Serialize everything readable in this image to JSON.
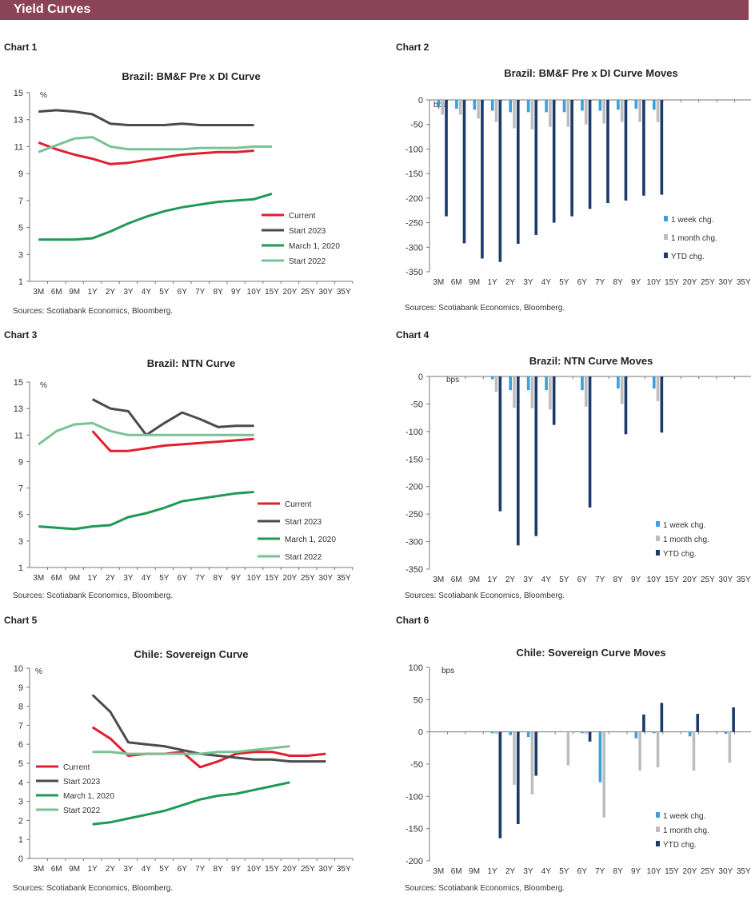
{
  "header": {
    "title": "Yield Curves"
  },
  "charts": [
    {
      "label": "Chart 1",
      "title": "Brazil: BM&F Pre x DI Curve",
      "source": "Sources: Scotiabank Economics, Bloomberg.",
      "unit": "%",
      "chart_data": {
        "type": "line",
        "categories": [
          "3M",
          "6M",
          "9M",
          "1Y",
          "2Y",
          "3Y",
          "4Y",
          "5Y",
          "6Y",
          "7Y",
          "8Y",
          "9Y",
          "10Y",
          "15Y",
          "20Y",
          "25Y",
          "30Y",
          "35Y"
        ],
        "ylim": [
          1,
          15
        ],
        "yticks": [
          1,
          3,
          5,
          7,
          9,
          11,
          13,
          15
        ],
        "legend": "bottom-right",
        "series": [
          {
            "name": "Current",
            "color": "#e0202e",
            "values": [
              11.3,
              10.8,
              10.4,
              10.1,
              9.7,
              9.8,
              10.0,
              10.2,
              10.4,
              10.5,
              10.6,
              10.6,
              10.7,
              null,
              null,
              null,
              null,
              null
            ]
          },
          {
            "name": "Start 2023",
            "color": "#4b4b4b",
            "values": [
              13.6,
              13.7,
              13.6,
              13.4,
              12.7,
              12.6,
              12.6,
              12.6,
              12.7,
              12.6,
              12.6,
              12.6,
              12.6,
              null,
              null,
              null,
              null,
              null
            ]
          },
          {
            "name": "March 1, 2020",
            "color": "#1f9a55",
            "values": [
              4.1,
              4.1,
              4.1,
              4.2,
              4.7,
              5.3,
              5.8,
              6.2,
              6.5,
              6.7,
              6.9,
              7.0,
              7.1,
              7.5,
              null,
              null,
              null,
              null
            ]
          },
          {
            "name": "Start 2022",
            "color": "#79c296",
            "values": [
              10.6,
              11.1,
              11.6,
              11.7,
              11.0,
              10.8,
              10.8,
              10.8,
              10.8,
              10.9,
              10.9,
              10.9,
              11.0,
              11.0,
              null,
              null,
              null,
              null
            ]
          }
        ]
      }
    },
    {
      "label": "Chart 2",
      "title": "Brazil: BM&F Pre x DI Curve Moves",
      "source": "Sources: Scotiabank Economics, Bloomberg.",
      "unit": "bps",
      "chart_data": {
        "type": "bar",
        "categories": [
          "3M",
          "6M",
          "9M",
          "1Y",
          "2Y",
          "3Y",
          "4Y",
          "5Y",
          "6Y",
          "7Y",
          "8Y",
          "9Y",
          "10Y",
          "15Y",
          "20Y",
          "25Y",
          "30Y",
          "35Y"
        ],
        "ylim": [
          -350,
          0
        ],
        "yticks": [
          0,
          -50,
          -100,
          -150,
          -200,
          -250,
          -300,
          -350
        ],
        "legend": "right",
        "series": [
          {
            "name": "1 week chg.",
            "color": "#3aa0d8",
            "values": [
              -15,
              -18,
              -20,
              -22,
              -25,
              -25,
              -25,
              -25,
              -22,
              -22,
              -20,
              -18,
              -20,
              null,
              null,
              null,
              null,
              null
            ]
          },
          {
            "name": "1 month chg.",
            "color": "#bdbdbd",
            "values": [
              -30,
              -30,
              -38,
              -45,
              -58,
              -60,
              -55,
              -55,
              -50,
              -48,
              -45,
              -45,
              -45,
              null,
              null,
              null,
              null,
              null
            ]
          },
          {
            "name": "YTD chg.",
            "color": "#1c3a6b",
            "values": [
              -237,
              -292,
              -323,
              -330,
              -293,
              -275,
              -250,
              -237,
              -222,
              -210,
              -205,
              -195,
              -193,
              null,
              null,
              null,
              null,
              null
            ]
          }
        ]
      }
    },
    {
      "label": "Chart 3",
      "title": "Brazil: NTN Curve",
      "source": "Sources: Scotiabank Economics, Bloomberg.",
      "unit": "%",
      "chart_data": {
        "type": "line",
        "categories": [
          "3M",
          "6M",
          "9M",
          "1Y",
          "2Y",
          "3Y",
          "4Y",
          "5Y",
          "6Y",
          "7Y",
          "8Y",
          "9Y",
          "10Y",
          "15Y",
          "20Y",
          "25Y",
          "30Y",
          "35Y"
        ],
        "ylim": [
          1,
          15
        ],
        "yticks": [
          1,
          3,
          5,
          7,
          9,
          11,
          13,
          15
        ],
        "legend": "bottom-right",
        "series": [
          {
            "name": "Current",
            "color": "#e0202e",
            "values": [
              null,
              null,
              null,
              11.3,
              9.8,
              9.8,
              10.0,
              10.2,
              10.3,
              10.4,
              10.5,
              10.6,
              10.7,
              null,
              null,
              null,
              null,
              null
            ]
          },
          {
            "name": "Start 2023",
            "color": "#4b4b4b",
            "values": [
              null,
              null,
              null,
              13.7,
              13.0,
              12.8,
              11.0,
              11.9,
              12.7,
              12.2,
              11.6,
              11.7,
              11.7,
              null,
              null,
              null,
              null,
              null
            ]
          },
          {
            "name": "March 1, 2020",
            "color": "#1f9a55",
            "values": [
              4.1,
              4.0,
              3.9,
              4.1,
              4.2,
              4.8,
              5.1,
              5.5,
              6.0,
              6.2,
              6.4,
              6.6,
              6.7,
              null,
              null,
              null,
              null,
              null
            ]
          },
          {
            "name": "Start 2022",
            "color": "#79c296",
            "values": [
              10.3,
              11.3,
              11.8,
              11.9,
              11.3,
              11.0,
              11.0,
              11.0,
              11.0,
              11.0,
              11.0,
              11.0,
              11.0,
              null,
              null,
              null,
              null,
              null
            ]
          }
        ]
      }
    },
    {
      "label": "Chart 4",
      "title": "Brazil: NTN Curve Moves",
      "source": "Sources: Scotiabank Economics, Bloomberg.",
      "unit": "bps",
      "chart_data": {
        "type": "bar",
        "categories": [
          "3M",
          "6M",
          "9M",
          "1Y",
          "2Y",
          "3Y",
          "4Y",
          "5Y",
          "6Y",
          "7Y",
          "8Y",
          "9Y",
          "10Y",
          "15Y",
          "20Y",
          "25Y",
          "30Y",
          "35Y"
        ],
        "ylim": [
          -350,
          0
        ],
        "yticks": [
          0,
          -50,
          -100,
          -150,
          -200,
          -250,
          -300,
          -350
        ],
        "legend": "bottom-right",
        "series": [
          {
            "name": "1 week chg.",
            "color": "#3aa0d8",
            "values": [
              null,
              null,
              null,
              -5,
              -25,
              -25,
              -25,
              null,
              -25,
              null,
              -22,
              null,
              -22,
              null,
              null,
              null,
              null,
              null
            ]
          },
          {
            "name": "1 month chg.",
            "color": "#bdbdbd",
            "values": [
              null,
              null,
              null,
              -28,
              -57,
              -58,
              -60,
              null,
              -55,
              null,
              -50,
              null,
              -45,
              null,
              null,
              null,
              null,
              null
            ]
          },
          {
            "name": "YTD chg.",
            "color": "#1c3a6b",
            "values": [
              null,
              null,
              null,
              -245,
              -307,
              -290,
              -88,
              null,
              -238,
              null,
              -105,
              null,
              -102,
              null,
              null,
              null,
              null,
              null
            ]
          }
        ]
      }
    },
    {
      "label": "Chart 5",
      "title": "Chile: Sovereign Curve",
      "source": "Sources: Scotiabank Economics, Bloomberg.",
      "unit": "%",
      "chart_data": {
        "type": "line",
        "categories": [
          "3M",
          "6M",
          "9M",
          "1Y",
          "2Y",
          "3Y",
          "4Y",
          "5Y",
          "6Y",
          "7Y",
          "8Y",
          "9Y",
          "10Y",
          "15Y",
          "20Y",
          "25Y",
          "30Y",
          "35Y"
        ],
        "ylim": [
          0,
          10
        ],
        "yticks": [
          0,
          1,
          2,
          3,
          4,
          5,
          6,
          7,
          8,
          9,
          10
        ],
        "legend": "left",
        "series": [
          {
            "name": "Current",
            "color": "#e0202e",
            "values": [
              null,
              null,
              null,
              6.9,
              6.3,
              5.4,
              5.5,
              5.5,
              5.6,
              4.8,
              5.1,
              5.5,
              5.6,
              5.6,
              5.4,
              5.4,
              5.5,
              null
            ]
          },
          {
            "name": "Start 2023",
            "color": "#4b4b4b",
            "values": [
              null,
              null,
              null,
              8.6,
              7.7,
              6.1,
              6.0,
              5.9,
              5.7,
              5.5,
              5.4,
              5.3,
              5.2,
              5.2,
              5.1,
              5.1,
              5.1,
              null
            ]
          },
          {
            "name": "March 1, 2020",
            "color": "#1f9a55",
            "values": [
              null,
              null,
              null,
              1.8,
              1.9,
              2.1,
              2.3,
              2.5,
              2.8,
              3.1,
              3.3,
              3.4,
              3.6,
              3.8,
              4.0,
              null,
              null,
              null
            ]
          },
          {
            "name": "Start 2022",
            "color": "#79c296",
            "values": [
              null,
              null,
              null,
              5.6,
              5.6,
              5.5,
              5.5,
              5.5,
              5.5,
              5.5,
              5.6,
              5.6,
              5.7,
              5.8,
              5.9,
              null,
              null,
              null
            ]
          }
        ]
      }
    },
    {
      "label": "Chart 6",
      "title": "Chile: Sovereign Curve Moves",
      "source": "Sources: Scotiabank Economics, Bloomberg.",
      "unit": "bps",
      "chart_data": {
        "type": "bar",
        "categories": [
          "3M",
          "6M",
          "9M",
          "1Y",
          "2Y",
          "3Y",
          "4Y",
          "5Y",
          "6Y",
          "7Y",
          "8Y",
          "9Y",
          "10Y",
          "15Y",
          "20Y",
          "25Y",
          "30Y",
          "35Y"
        ],
        "ylim": [
          -200,
          100
        ],
        "yticks": [
          100,
          50,
          0,
          -50,
          -100,
          -150,
          -200
        ],
        "legend": "bottom-right",
        "series": [
          {
            "name": "1 week chg.",
            "color": "#3aa0d8",
            "values": [
              null,
              null,
              null,
              -2,
              -5,
              -8,
              null,
              null,
              -2,
              -78,
              null,
              -10,
              -2,
              null,
              -7,
              null,
              -3,
              null
            ]
          },
          {
            "name": "1 month chg.",
            "color": "#bdbdbd",
            "values": [
              null,
              null,
              null,
              -3,
              -82,
              -97,
              null,
              -52,
              -3,
              -133,
              null,
              -60,
              -55,
              null,
              -60,
              null,
              -48,
              null
            ]
          },
          {
            "name": "YTD chg.",
            "color": "#1c3a6b",
            "values": [
              null,
              null,
              null,
              -165,
              -143,
              -68,
              null,
              null,
              -15,
              null,
              null,
              27,
              45,
              null,
              28,
              null,
              38,
              null
            ]
          }
        ]
      }
    }
  ]
}
